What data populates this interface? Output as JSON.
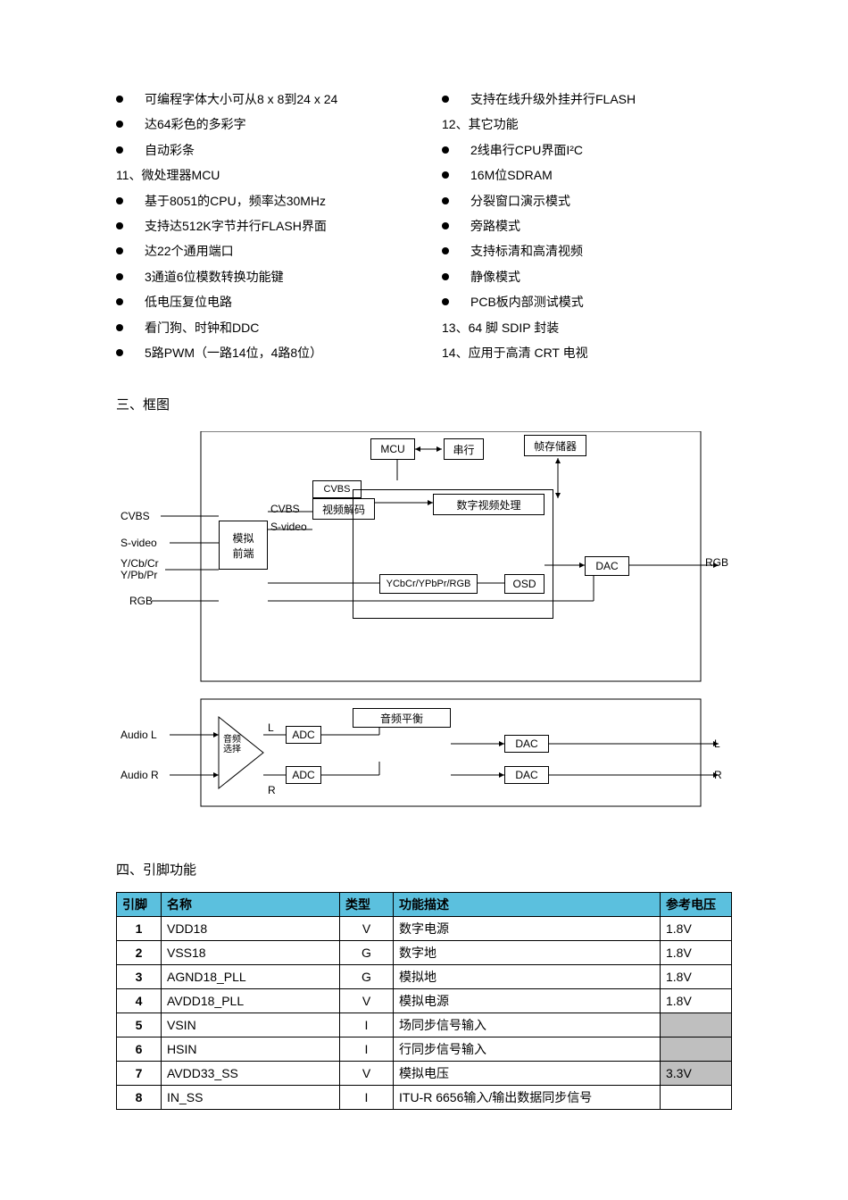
{
  "left_bullets_1": [
    "可编程字体大小可从8 x 8到24 x 24",
    "达64彩色的多彩字",
    "自动彩条"
  ],
  "left_num_1": "11、微处理器MCU",
  "left_bullets_2": [
    "基于8051的CPU，频率达30MHz",
    "支持达512K字节并行FLASH界面",
    "达22个通用端口",
    "3通道6位模数转换功能键",
    "低电压复位电路",
    "看门狗、时钟和DDC",
    "5路PWM（一路14位，4路8位）"
  ],
  "right_bullet_1": "支持在线升级外挂并行FLASH",
  "right_num_1": "12、其它功能",
  "right_bullets_2": [
    "2线串行CPU界面I²C",
    "16M位SDRAM",
    "分裂窗口演示模式",
    "旁路模式",
    "支持标清和高清视频",
    "静像模式",
    "PCB板内部测试模式"
  ],
  "right_num_2": "13、64 脚 SDIP 封装",
  "right_num_3": "14、应用于高清 CRT 电视",
  "section3": "三、框图",
  "section4": "四、引脚功能",
  "diagram": {
    "mcu": "MCU",
    "serial": "串行",
    "framebuf": "帧存储器",
    "cvbs_lbl": "CVBS",
    "video_decode": "视频解码",
    "dvp": "数字视频处理",
    "analog_fe": "模拟\n前端",
    "svideo_lbl": "S-video",
    "ycbcr_lbl": "YCbCr/YPbPr/RGB",
    "osd": "OSD",
    "dac1": "DAC",
    "audio_bal": "音频平衡",
    "audio_sel": "音频\n选择",
    "adc1": "ADC",
    "adc2": "ADC",
    "dac_a1": "DAC",
    "dac_a2": "DAC",
    "in_cvbs": "CVBS",
    "in_svideo": "S-video",
    "in_ycbcr": "Y/Cb/Cr\nY/Pb/Pr",
    "in_rgb": "RGB",
    "in_al": "Audio L",
    "in_ar": "Audio R",
    "out_rgb": "RGB",
    "out_l": "L",
    "out_r": "R",
    "lbl_l": "L",
    "lbl_r": "R"
  },
  "table": {
    "headers": [
      "引脚",
      "名称",
      "类型",
      "功能描述",
      "参考电压"
    ],
    "header_bg": "#5bc0de",
    "shaded_bg": "#bfbfbf",
    "rows": [
      {
        "pin": "1",
        "name": "VDD18",
        "type": "V",
        "desc": "数字电源",
        "volt": "1.8V",
        "shaded": false
      },
      {
        "pin": "2",
        "name": "VSS18",
        "type": "G",
        "desc": "数字地",
        "volt": "1.8V",
        "shaded": false
      },
      {
        "pin": "3",
        "name": "AGND18_PLL",
        "type": "G",
        "desc": "模拟地",
        "volt": "1.8V",
        "shaded": false
      },
      {
        "pin": "4",
        "name": "AVDD18_PLL",
        "type": "V",
        "desc": "模拟电源",
        "volt": "1.8V",
        "shaded": false
      },
      {
        "pin": "5",
        "name": "VSIN",
        "type": "I",
        "desc": "场同步信号输入",
        "volt": "",
        "shaded": true
      },
      {
        "pin": "6",
        "name": "HSIN",
        "type": "I",
        "desc": "行同步信号输入",
        "volt": "",
        "shaded": true
      },
      {
        "pin": "7",
        "name": "AVDD33_SS",
        "type": "V",
        "desc": "模拟电压",
        "volt": "3.3V",
        "shaded": true
      },
      {
        "pin": "8",
        "name": "IN_SS",
        "type": "I",
        "desc": "ITU-R 6656输入/输出数据同步信号",
        "volt": "",
        "shaded": false
      }
    ]
  }
}
